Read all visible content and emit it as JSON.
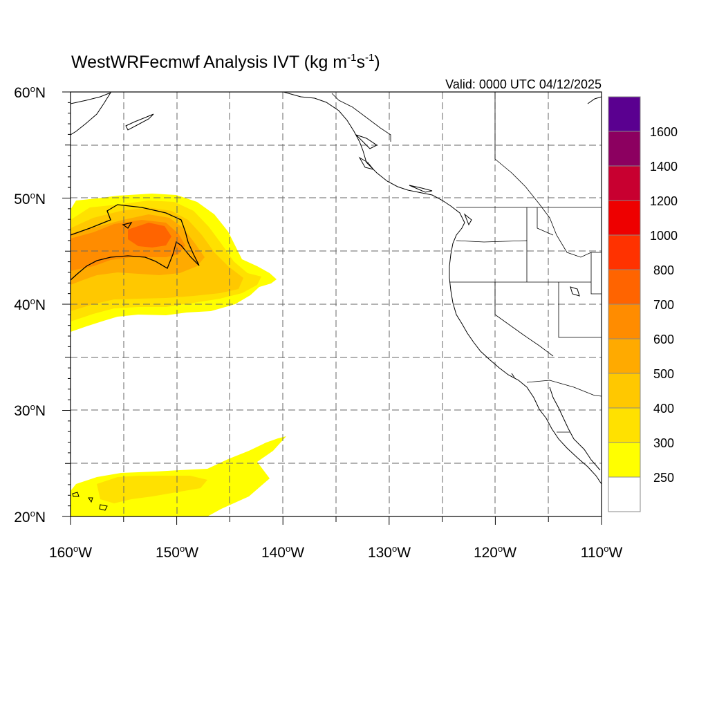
{
  "title": {
    "main": "WestWRFecmwf Analysis IVT (kg m",
    "exp1": "-1",
    "mid": "s",
    "exp2": "-1",
    "close": ")"
  },
  "valid_label": "Valid: 0000 UTC 04/12/2025",
  "map": {
    "projection": "cylindrical-equidistant",
    "lon_range": [
      -160,
      -110
    ],
    "lat_range": [
      20,
      60
    ],
    "grid": "dashed every 5 degrees",
    "lat_ticks": [
      {
        "value": 60,
        "num": "60",
        "deg": "o",
        "hemi": "N"
      },
      {
        "value": 50,
        "num": "50",
        "deg": "o",
        "hemi": "N"
      },
      {
        "value": 40,
        "num": "40",
        "deg": "o",
        "hemi": "N"
      },
      {
        "value": 30,
        "num": "30",
        "deg": "o",
        "hemi": "N"
      },
      {
        "value": 20,
        "num": "20",
        "deg": "o",
        "hemi": "N"
      }
    ],
    "lon_ticks": [
      {
        "value": -160,
        "num": "160",
        "deg": "o",
        "hemi": "W"
      },
      {
        "value": -150,
        "num": "150",
        "deg": "o",
        "hemi": "W"
      },
      {
        "value": -140,
        "num": "140",
        "deg": "o",
        "hemi": "W"
      },
      {
        "value": -130,
        "num": "130",
        "deg": "o",
        "hemi": "W"
      },
      {
        "value": -120,
        "num": "120",
        "deg": "o",
        "hemi": "W"
      },
      {
        "value": -110,
        "num": "110",
        "deg": "o",
        "hemi": "W"
      }
    ]
  },
  "colorbar": {
    "levels": [
      {
        "label": "",
        "color": "#ffffff"
      },
      {
        "label": "250",
        "color": "#ffff00"
      },
      {
        "label": "300",
        "color": "#ffe100"
      },
      {
        "label": "400",
        "color": "#ffc800"
      },
      {
        "label": "500",
        "color": "#ffaa00"
      },
      {
        "label": "600",
        "color": "#ff8c00"
      },
      {
        "label": "700",
        "color": "#ff6400"
      },
      {
        "label": "800",
        "color": "#ff3200"
      },
      {
        "label": "1000",
        "color": "#ee0000"
      },
      {
        "label": "1200",
        "color": "#c80030"
      },
      {
        "label": "1400",
        "color": "#8c0060"
      },
      {
        "label": "1600",
        "color": "#5a0090"
      }
    ]
  }
}
